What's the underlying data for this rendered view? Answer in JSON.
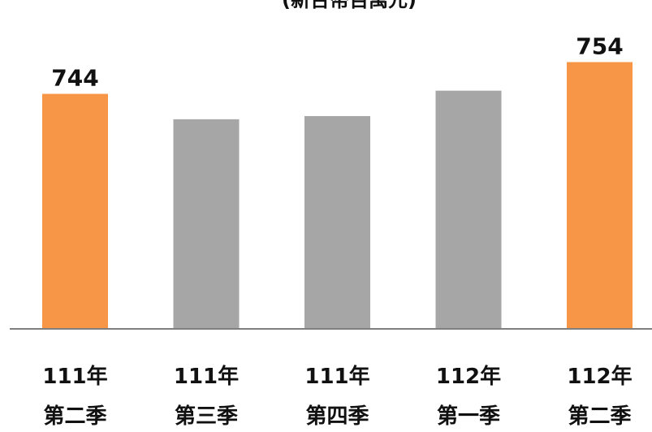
{
  "chart_data": {
    "type": "bar",
    "title": "(新台幣百萬元)",
    "categories": [
      [
        "111年",
        "第二季"
      ],
      [
        "111年",
        "第三季"
      ],
      [
        "111年",
        "第四季"
      ],
      [
        "112年",
        "第一季"
      ],
      [
        "112年",
        "第二季"
      ]
    ],
    "values": [
      744,
      736,
      737,
      745,
      754
    ],
    "data_labels": [
      "744",
      "",
      "",
      "",
      "754"
    ],
    "highlight_indices": [
      0,
      4
    ],
    "colors": {
      "highlight": "#f79646",
      "default": "#a6a6a6",
      "axis": "#7f7f7f",
      "text": "#111111"
    },
    "ylim": [
      670,
      760
    ],
    "xlabel": "",
    "ylabel": "",
    "grid": false
  }
}
